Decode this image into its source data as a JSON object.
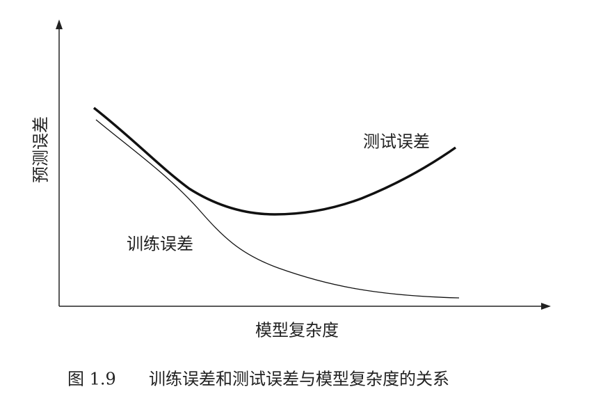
{
  "figure": {
    "y_axis_label": "预测误差",
    "x_axis_label": "模型复杂度",
    "curves": [
      {
        "label": "测试误差"
      },
      {
        "label": "训练误差"
      }
    ],
    "caption": {
      "number": "图 1.9",
      "text": "训练误差和测试误差与模型复杂度的关系"
    }
  }
}
